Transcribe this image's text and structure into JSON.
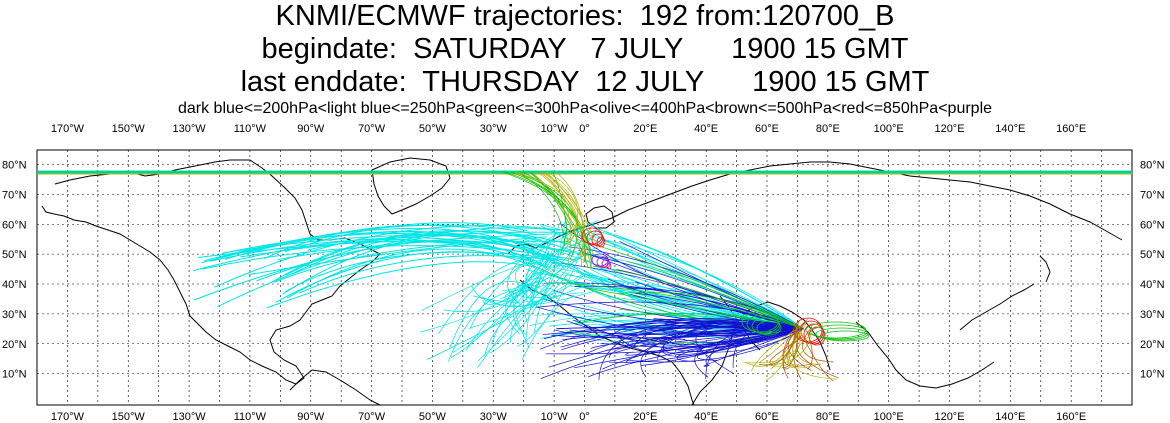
{
  "header": {
    "line1": "KNMI/ECMWF trajectories:  192 from:120700_B",
    "line2": "begindate:  SATURDAY   7 JULY      1900 15 GMT",
    "line3": "last enddate:  THURSDAY  12 JULY      1900 15 GMT"
  },
  "legend_text": "dark blue<=200hPa<light blue<=250hPa<green<=300hPa<olive<=400hPa<brown<=500hPa<red<=850hPa<purple",
  "pressure_classes": [
    {
      "label": "dark blue",
      "color": "#1010d0",
      "max_hPa": 200
    },
    {
      "label": "light blue",
      "color": "#00e5e5",
      "max_hPa": 250
    },
    {
      "label": "green",
      "color": "#10c010",
      "max_hPa": 300
    },
    {
      "label": "olive",
      "color": "#b0b000",
      "max_hPa": 400
    },
    {
      "label": "brown",
      "color": "#b05010",
      "max_hPa": 500
    },
    {
      "label": "red",
      "color": "#ff0000",
      "max_hPa": 850
    },
    {
      "label": "purple",
      "color": "#c000c0"
    }
  ],
  "map": {
    "lon_labels": [
      "170°W",
      "150°W",
      "130°W",
      "110°W",
      "90°W",
      "70°W",
      "50°W",
      "30°W",
      "10°W",
      "0°",
      "20°E",
      "40°E",
      "60°E",
      "80°E",
      "100°E",
      "120°E",
      "140°E",
      "160°E"
    ],
    "lat_labels": [
      "80°N",
      "70°N",
      "60°N",
      "50°N",
      "40°N",
      "30°N",
      "20°N",
      "10°N"
    ],
    "grid": "dashed"
  }
}
